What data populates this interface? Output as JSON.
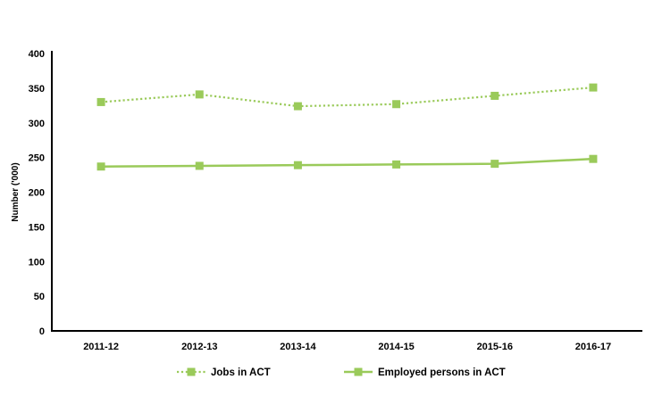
{
  "page": {
    "background": "#ffffff"
  },
  "colors": {
    "series_green": "#9aca5a",
    "axis": "#000000",
    "text": "#000000"
  },
  "chart_data": {
    "type": "line",
    "title": "",
    "xlabel": "",
    "ylabel": "Number ('000)",
    "categories": [
      "2011-12",
      "2012-13",
      "2013-14",
      "2014-15",
      "2015-16",
      "2016-17"
    ],
    "series": [
      {
        "name": "Jobs in ACT",
        "line_style": "dotted",
        "marker": "square",
        "color": "#9aca5a",
        "values": [
          330,
          341,
          324,
          327,
          339,
          351
        ]
      },
      {
        "name": "Employed persons in ACT",
        "line_style": "solid",
        "marker": "square",
        "color": "#9aca5a",
        "values": [
          237,
          238,
          239,
          240,
          241,
          248
        ]
      }
    ],
    "ylim": [
      0,
      400
    ],
    "ytick_step": 50,
    "yticks": [
      0,
      50,
      100,
      150,
      200,
      250,
      300,
      350,
      400
    ],
    "grid": false,
    "legend_position": "bottom"
  }
}
